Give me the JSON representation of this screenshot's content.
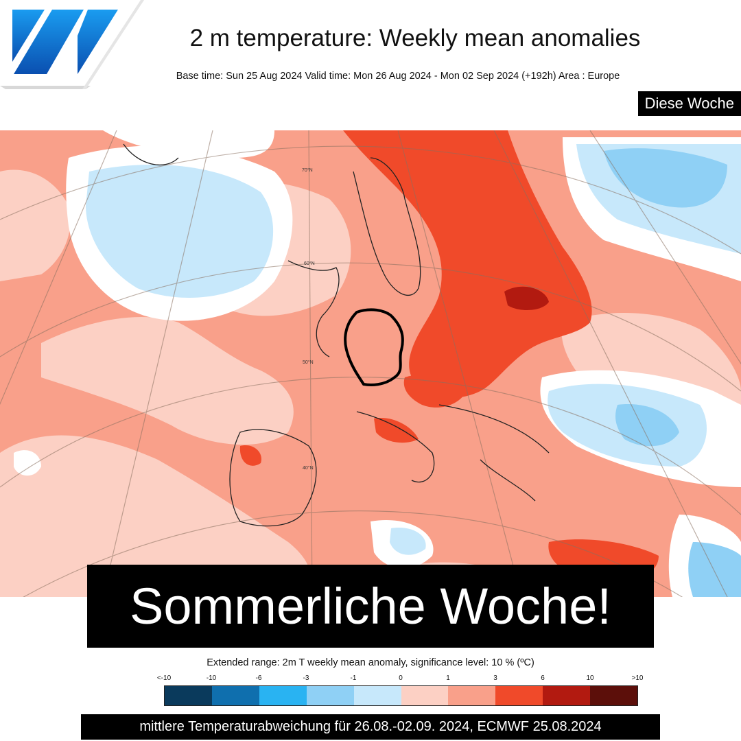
{
  "header": {
    "logo_icon": "ecmwf-logo-icon",
    "title": "2 m temperature: Weekly mean anomalies",
    "subtitle": "Base time: Sun 25 Aug 2024 Valid time: Mon 26 Aug 2024 - Mon 02 Sep 2024 (+192h) Area : Europe",
    "tag": "Diese Woche"
  },
  "map": {
    "description_icon": "temperature-anomaly-map",
    "lat_labels": [
      "70°N",
      "60°N",
      "50°N",
      "40°N"
    ],
    "colors": {
      "very_warm": "#f04a2a",
      "warm": "#f9a08a",
      "slightly_warm": "#fcd0c4",
      "neutral": "#ffffff",
      "slightly_cool": "#c7e8fb",
      "cool": "#8fd0f5",
      "hot_spot": "#b21a10"
    }
  },
  "headline": "Sommerliche Woche!",
  "legend": {
    "title": "Extended range: 2m T weekly mean anomaly, significance level: 10 % (ºC)",
    "ticks": [
      "<-10",
      "-10",
      "-6",
      "-3",
      "-1",
      "0",
      "1",
      "3",
      "6",
      "10",
      ">10"
    ],
    "colors": [
      "#0a3a5c",
      "#0f6fae",
      "#29b3f2",
      "#8fd0f5",
      "#c7e8fb",
      "#fcd0c4",
      "#f9a08a",
      "#f04a2a",
      "#b21a10",
      "#5c0f0a"
    ]
  },
  "footer": "mittlere Temperaturabweichung für 26.08.-02.09. 2024, ECMWF 25.08.2024"
}
